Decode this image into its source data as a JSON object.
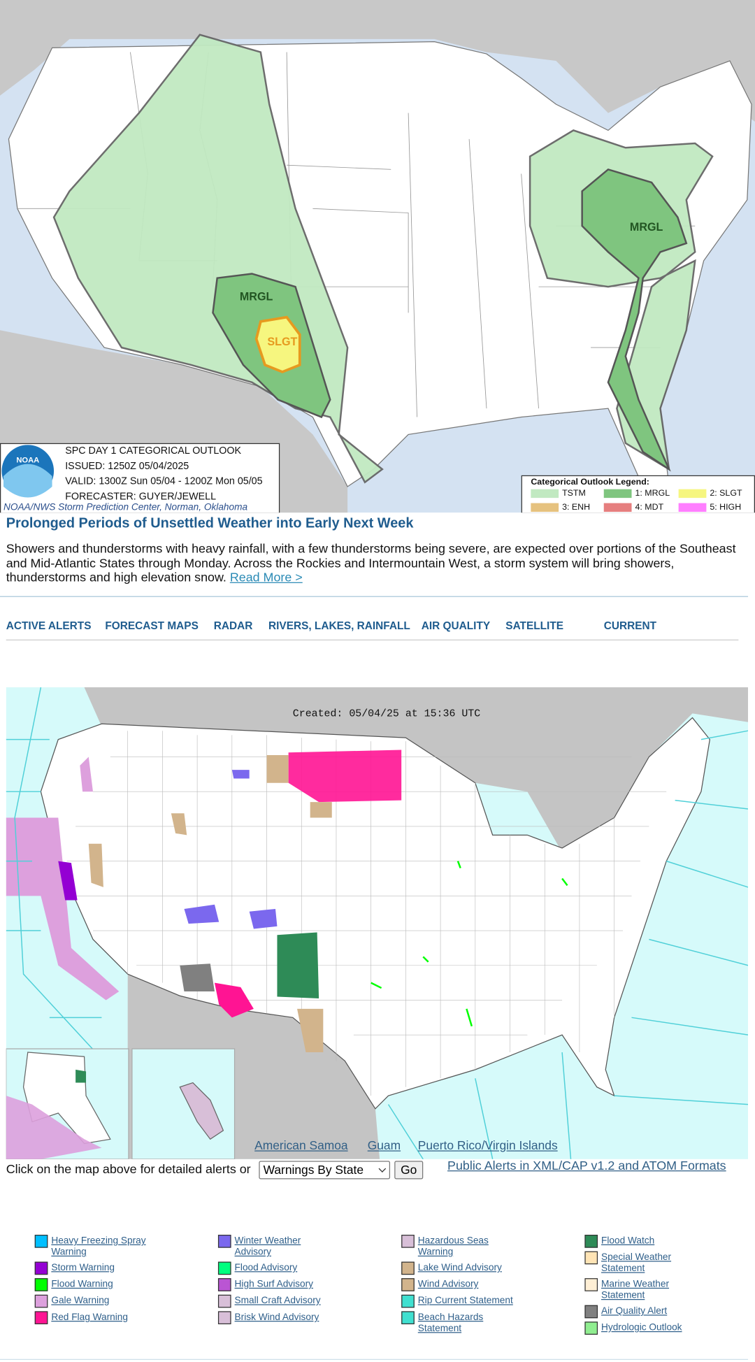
{
  "outlook": {
    "noaa": "NOAA",
    "title": "SPC DAY 1 CATEGORICAL OUTLOOK",
    "issued": "ISSUED: 1250Z 05/04/2025",
    "valid": "VALID: 1300Z Sun 05/04 - 1200Z Mon 05/05",
    "forecaster": "FORECASTER: GUYER/JEWELL",
    "credit": "NOAA/NWS Storm Prediction Center, Norman, Oklahoma",
    "area_labels": [
      "MRGL",
      "SLGT",
      "MRGL"
    ],
    "legend_title": "Categorical Outlook Legend:",
    "legend": [
      {
        "label": "TSTM",
        "color": "#c1e9c1"
      },
      {
        "label": "1: MRGL",
        "color": "#7fc57f"
      },
      {
        "label": "2: SLGT",
        "color": "#f6f67f"
      },
      {
        "label": "3: ENH",
        "color": "#e6c27f"
      },
      {
        "label": "4: MDT",
        "color": "#e67f7f"
      },
      {
        "label": "5: HIGH",
        "color": "#ff7fff"
      }
    ]
  },
  "headline": {
    "title": "Prolonged Periods of Unsettled Weather into Early Next Week",
    "text": "Showers and thunderstorms with heavy rainfall, with a few thunderstorms being severe, are expected over portions of the Southeast and Mid-Atlantic States through Monday. Across the Rockies and Intermountain West, a storm system will bring showers, thunderstorms and high elevation snow.",
    "link": "Read More >"
  },
  "nav": [
    "ACTIVE ALERTS",
    "FORECAST MAPS",
    "RADAR",
    "RIVERS, LAKES, RAINFALL",
    "AIR QUALITY",
    "SATELLITE",
    "CURRENT"
  ],
  "hazard_map": {
    "created": "Created: 05/04/25 at 15:36 UTC",
    "links": [
      "American Samoa",
      "Guam",
      "Puerto Rico/Virgin Islands"
    ]
  },
  "alerts_bar": {
    "prompt": "Click on the map above for detailed alerts or",
    "select": "Warnings By State",
    "button": "Go",
    "xml_link": "Public Alerts in XML/CAP v1.2 and ATOM Formats"
  },
  "legend": [
    [
      {
        "label": "Heavy Freezing Spray Warning",
        "color": "#00bfff"
      },
      {
        "label": "Storm Warning",
        "color": "#9400d3"
      },
      {
        "label": "Flood Warning",
        "color": "#00ff00"
      },
      {
        "label": "Gale Warning",
        "color": "#dda0dd"
      },
      {
        "label": "Red Flag Warning",
        "color": "#ff1493"
      }
    ],
    [
      {
        "label": "Winter Weather Advisory",
        "color": "#7b68ee"
      },
      {
        "label": "Flood Advisory",
        "color": "#00ff7f"
      },
      {
        "label": "High Surf Advisory",
        "color": "#ba55d3"
      },
      {
        "label": "Small Craft Advisory",
        "color": "#d8bfd8"
      },
      {
        "label": "Brisk Wind Advisory",
        "color": "#d8bfd8"
      }
    ],
    [
      {
        "label": "Hazardous Seas Warning",
        "color": "#d8bfd8"
      },
      {
        "label": "Lake Wind Advisory",
        "color": "#d2b48c"
      },
      {
        "label": "Wind Advisory",
        "color": "#d2b48c"
      },
      {
        "label": "Rip Current Statement",
        "color": "#40e0d0"
      },
      {
        "label": "Beach Hazards Statement",
        "color": "#40e0d0"
      }
    ],
    [
      {
        "label": "Flood Watch",
        "color": "#2e8b57"
      },
      {
        "label": "Special Weather Statement",
        "color": "#ffe4b5"
      },
      {
        "label": "Marine Weather Statement",
        "color": "#ffefd5"
      },
      {
        "label": "Air Quality Alert",
        "color": "#808080"
      },
      {
        "label": "Hydrologic Outlook",
        "color": "#90ee90"
      }
    ]
  ]
}
